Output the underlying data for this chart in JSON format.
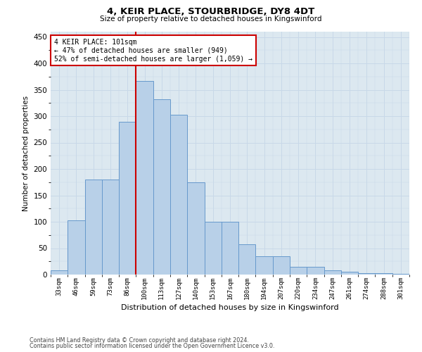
{
  "title": "4, KEIR PLACE, STOURBRIDGE, DY8 4DT",
  "subtitle": "Size of property relative to detached houses in Kingswinford",
  "xlabel": "Distribution of detached houses by size in Kingswinford",
  "ylabel": "Number of detached properties",
  "categories": [
    "33sqm",
    "46sqm",
    "59sqm",
    "73sqm",
    "86sqm",
    "100sqm",
    "113sqm",
    "127sqm",
    "140sqm",
    "153sqm",
    "167sqm",
    "180sqm",
    "194sqm",
    "207sqm",
    "220sqm",
    "234sqm",
    "247sqm",
    "261sqm",
    "274sqm",
    "288sqm",
    "301sqm"
  ],
  "values": [
    8,
    103,
    180,
    180,
    290,
    367,
    332,
    303,
    175,
    100,
    100,
    58,
    35,
    35,
    15,
    15,
    8,
    5,
    3,
    3,
    2
  ],
  "bar_color": "#b8d0e8",
  "bar_edge_color": "#6699cc",
  "property_label": "4 KEIR PLACE: 101sqm",
  "annotation_line1": "← 47% of detached houses are smaller (949)",
  "annotation_line2": "52% of semi-detached houses are larger (1,059) →",
  "vline_color": "#cc0000",
  "annotation_box_color": "#cc0000",
  "grid_color": "#c8d8e8",
  "background_color": "#dce8f0",
  "ylim": [
    0,
    460
  ],
  "footer1": "Contains HM Land Registry data © Crown copyright and database right 2024.",
  "footer2": "Contains public sector information licensed under the Open Government Licence v3.0."
}
